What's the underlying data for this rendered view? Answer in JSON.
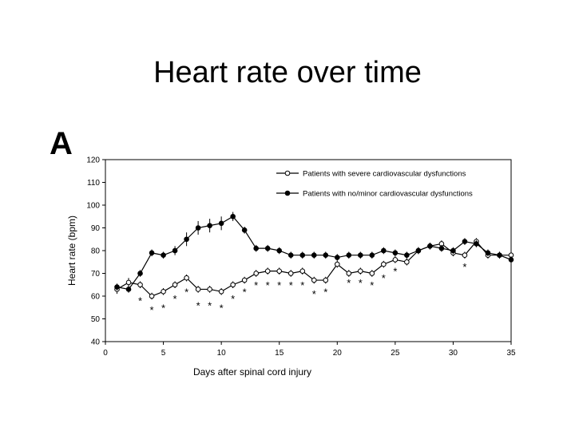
{
  "slide": {
    "title": "Heart rate over time",
    "panel_label": "A"
  },
  "chart_data": {
    "type": "line",
    "title": "",
    "xlabel": "Days after spinal cord injury",
    "ylabel": "Heart rate (bpm)",
    "xlim": [
      0,
      35
    ],
    "ylim": [
      40,
      120
    ],
    "xticks": [
      0,
      5,
      10,
      15,
      20,
      25,
      30,
      35
    ],
    "yticks": [
      40,
      50,
      60,
      70,
      80,
      90,
      100,
      110,
      120
    ],
    "grid": false,
    "legend": "top-right",
    "series": [
      {
        "name": "Patients with severe cardiovascular dysfunctions",
        "marker": "open-circle",
        "color": "#000000",
        "x": [
          1,
          2,
          3,
          4,
          5,
          6,
          7,
          8,
          9,
          10,
          11,
          12,
          13,
          14,
          15,
          16,
          17,
          18,
          19,
          20,
          21,
          22,
          23,
          24,
          25,
          26,
          27,
          28,
          29,
          30,
          31,
          32,
          33,
          34,
          35
        ],
        "y": [
          63,
          66,
          65,
          60,
          62,
          65,
          68,
          63,
          63,
          62,
          65,
          67,
          70,
          71,
          71,
          70,
          71,
          67,
          67,
          74,
          70,
          71,
          70,
          74,
          76,
          75,
          80,
          82,
          83,
          79,
          78,
          84,
          78,
          78,
          78
        ],
        "err": [
          2,
          2,
          1.5,
          1.5,
          1.5,
          1.5,
          1.5,
          1.5,
          1.5,
          1.5,
          1.5,
          1.5,
          1.5,
          1.5,
          1.5,
          1.5,
          1.5,
          1.5,
          1.5,
          1.5,
          1.5,
          1.5,
          1.5,
          1.5,
          1.5,
          1.5,
          1.5,
          1.5,
          1.5,
          1.5,
          1.5,
          1.5,
          1.5,
          1.5,
          1.5
        ]
      },
      {
        "name": "Patients with no/minor cardiovascular dysfunctions",
        "marker": "filled-circle",
        "color": "#000000",
        "x": [
          1,
          2,
          3,
          4,
          5,
          6,
          7,
          8,
          9,
          10,
          11,
          12,
          13,
          14,
          15,
          16,
          17,
          18,
          19,
          20,
          21,
          22,
          23,
          24,
          25,
          26,
          27,
          28,
          29,
          30,
          31,
          32,
          33,
          34,
          35
        ],
        "y": [
          64,
          63,
          70,
          79,
          78,
          80,
          85,
          90,
          91,
          92,
          95,
          89,
          81,
          81,
          80,
          78,
          78,
          78,
          78,
          77,
          78,
          78,
          78,
          80,
          79,
          78,
          80,
          82,
          81,
          80,
          84,
          83,
          79,
          78,
          76
        ],
        "err": [
          1.5,
          1.5,
          1.5,
          1.5,
          1.5,
          2,
          3,
          3,
          3,
          3,
          2,
          1.5,
          1.5,
          1.5,
          1.5,
          1.5,
          1.5,
          1.5,
          1.5,
          1.5,
          1.5,
          1.5,
          1.5,
          1.5,
          1.5,
          1.5,
          1.5,
          1.5,
          1.5,
          1.5,
          1.5,
          1.5,
          1.5,
          1.5,
          1.5
        ]
      }
    ],
    "annotations": [
      {
        "text": "*",
        "x": 3,
        "y": 58
      },
      {
        "text": "*",
        "x": 4,
        "y": 54
      },
      {
        "text": "*",
        "x": 5,
        "y": 55
      },
      {
        "text": "*",
        "x": 6,
        "y": 59
      },
      {
        "text": "*",
        "x": 7,
        "y": 62
      },
      {
        "text": "*",
        "x": 8,
        "y": 56
      },
      {
        "text": "*",
        "x": 9,
        "y": 56
      },
      {
        "text": "*",
        "x": 10,
        "y": 55
      },
      {
        "text": "*",
        "x": 11,
        "y": 59
      },
      {
        "text": "*",
        "x": 12,
        "y": 62
      },
      {
        "text": "*",
        "x": 13,
        "y": 65
      },
      {
        "text": "*",
        "x": 14,
        "y": 65
      },
      {
        "text": "*",
        "x": 15,
        "y": 65
      },
      {
        "text": "*",
        "x": 16,
        "y": 65
      },
      {
        "text": "*",
        "x": 17,
        "y": 65
      },
      {
        "text": "*",
        "x": 18,
        "y": 61
      },
      {
        "text": "*",
        "x": 19,
        "y": 62
      },
      {
        "text": "*",
        "x": 21,
        "y": 66
      },
      {
        "text": "*",
        "x": 22,
        "y": 66
      },
      {
        "text": "*",
        "x": 23,
        "y": 65
      },
      {
        "text": "*",
        "x": 24,
        "y": 68
      },
      {
        "text": "*",
        "x": 25,
        "y": 71
      },
      {
        "text": "*",
        "x": 31,
        "y": 73
      }
    ]
  }
}
